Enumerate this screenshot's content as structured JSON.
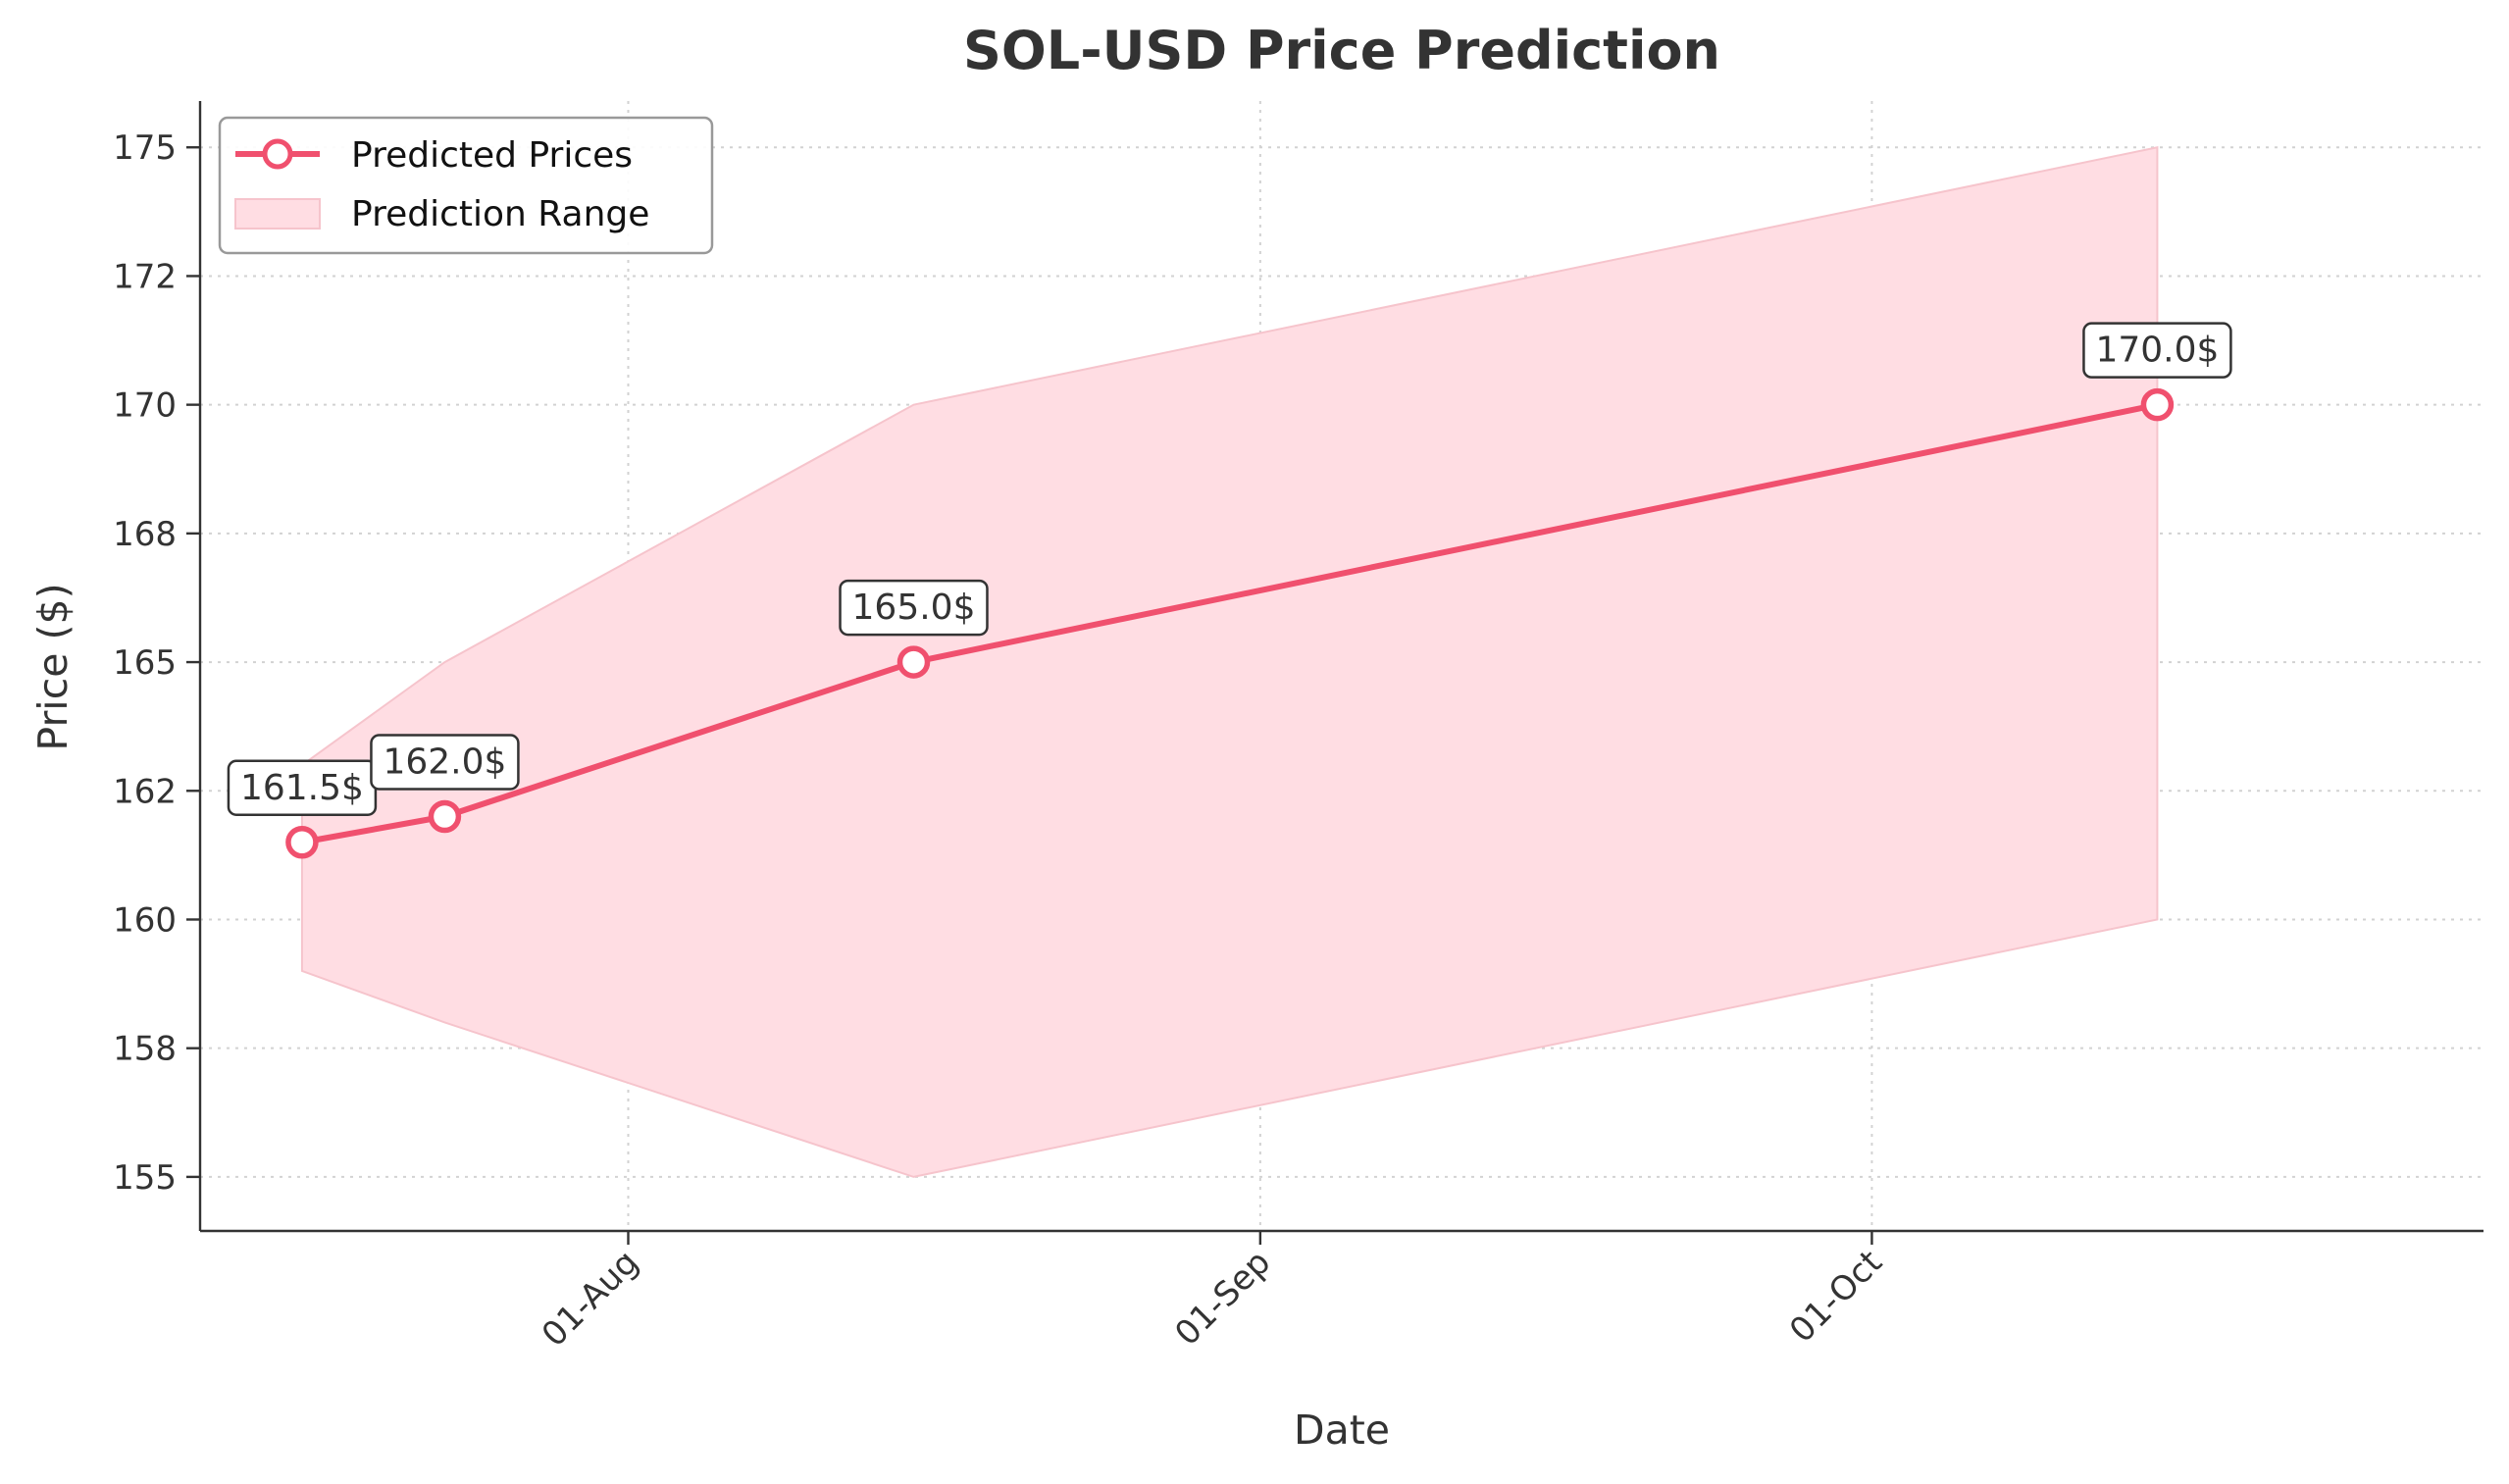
{
  "chart_data": {
    "type": "line",
    "title": "SOL-USD Price Prediction",
    "xlabel": "Date",
    "ylabel": "Price ($)",
    "x_ticks": [
      {
        "label": "01-Aug",
        "date": "2024-08-01"
      },
      {
        "label": "01-Sep",
        "date": "2024-09-01"
      },
      {
        "label": "01-Oct",
        "date": "2024-10-01"
      }
    ],
    "y_ticks": [
      {
        "label": "155",
        "value": 155
      },
      {
        "label": "158",
        "value": 157.5
      },
      {
        "label": "160",
        "value": 160
      },
      {
        "label": "162",
        "value": 162.5
      },
      {
        "label": "165",
        "value": 165
      },
      {
        "label": "168",
        "value": 167.5
      },
      {
        "label": "170",
        "value": 170
      },
      {
        "label": "172",
        "value": 172.5
      },
      {
        "label": "175",
        "value": 175
      }
    ],
    "xlim": [
      "2024-07-11",
      "2024-10-31"
    ],
    "ylim": [
      153.95,
      175.9
    ],
    "grid": true,
    "legend_position": "top-left",
    "series": [
      {
        "name": "Predicted Prices",
        "color": "#f0506e",
        "points": [
          {
            "date": "2024-07-16",
            "value": 161.5,
            "label": "161.5$"
          },
          {
            "date": "2024-07-23",
            "value": 162.0,
            "label": "162.0$"
          },
          {
            "date": "2024-08-15",
            "value": 165.0,
            "label": "165.0$"
          },
          {
            "date": "2024-10-15",
            "value": 170.0,
            "label": "170.0$"
          }
        ]
      }
    ],
    "range": {
      "name": "Prediction Range",
      "color": "#ffdde3",
      "upper": [
        {
          "date": "2024-07-16",
          "value": 163.0
        },
        {
          "date": "2024-07-23",
          "value": 165.0
        },
        {
          "date": "2024-08-15",
          "value": 170.0
        },
        {
          "date": "2024-10-15",
          "value": 175.0
        }
      ],
      "lower": [
        {
          "date": "2024-07-16",
          "value": 159.0
        },
        {
          "date": "2024-07-23",
          "value": 158.0
        },
        {
          "date": "2024-08-15",
          "value": 155.0
        },
        {
          "date": "2024-10-15",
          "value": 160.0
        }
      ]
    }
  }
}
